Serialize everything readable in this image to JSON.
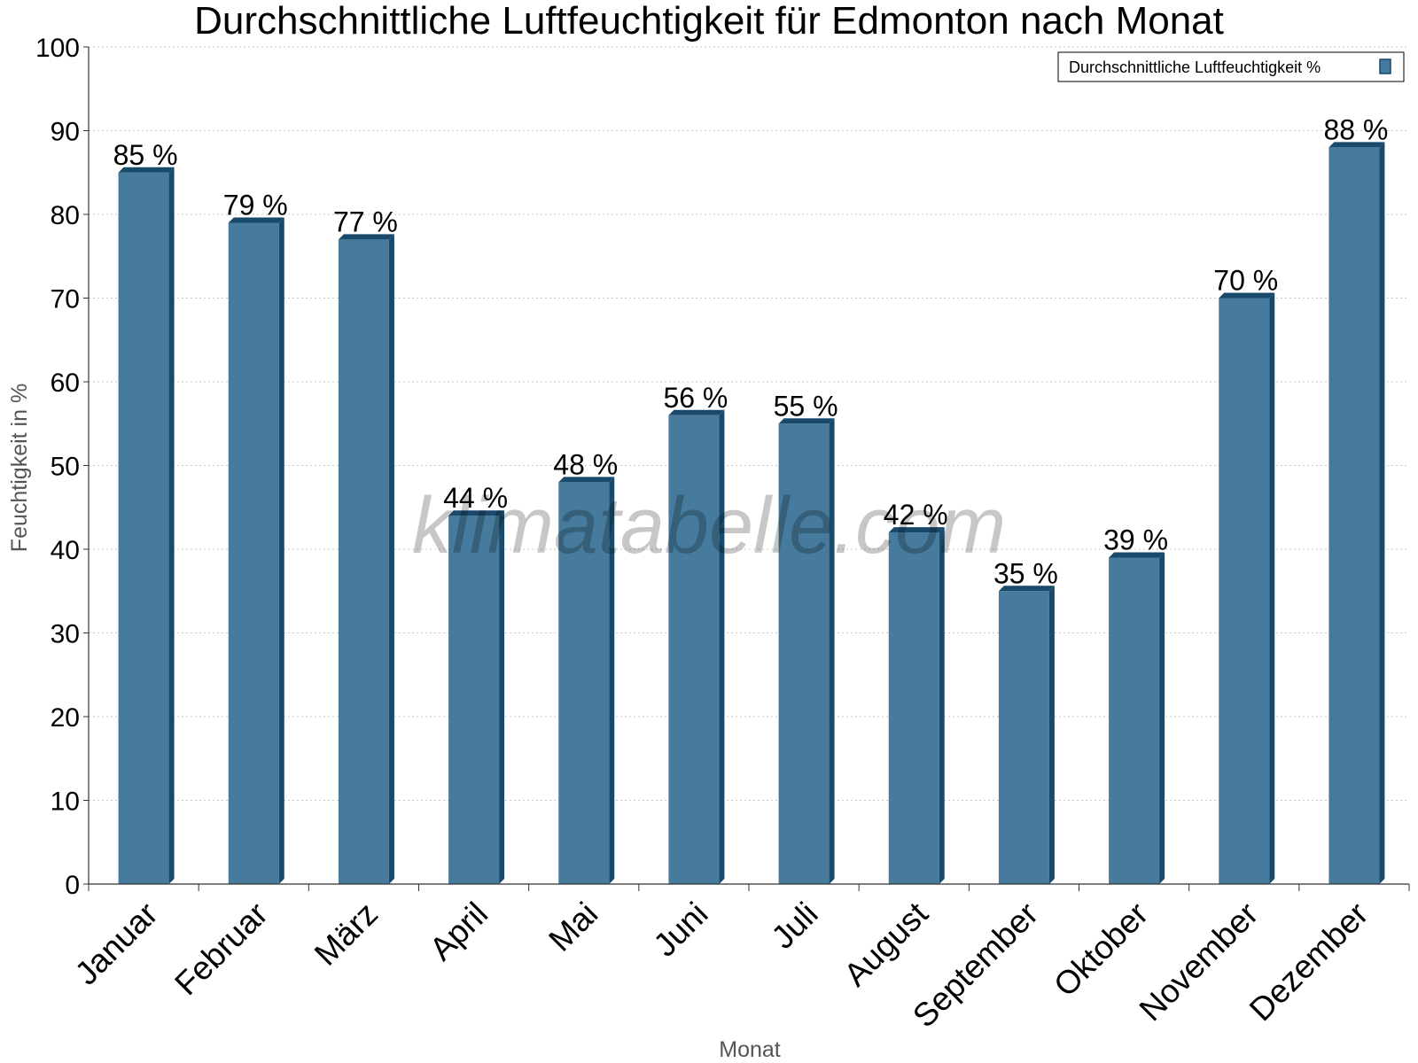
{
  "chart_data": {
    "type": "bar",
    "title": "Durchschnittliche Luftfeuchtigkeit für Edmonton nach Monat",
    "xlabel": "Monat",
    "ylabel": "Feuchtigkeit in %",
    "categories": [
      "Januar",
      "Februar",
      "März",
      "April",
      "Mai",
      "Juni",
      "Juli",
      "August",
      "September",
      "Oktober",
      "November",
      "Dezember"
    ],
    "series": [
      {
        "name": "Durchschnittliche Luftfeuchtigkeit %",
        "values": [
          85,
          79,
          77,
          44,
          48,
          56,
          55,
          42,
          35,
          39,
          70,
          88
        ],
        "data_labels": [
          "85 %",
          "79 %",
          "77 %",
          "44 %",
          "48 %",
          "56 %",
          "55 %",
          "42 %",
          "35 %",
          "39 %",
          "70 %",
          "88 %"
        ],
        "color": "#467b9d",
        "edge_color": "#1a4a6b"
      }
    ],
    "ylim": [
      0,
      100
    ],
    "yticks": [
      0,
      10,
      20,
      30,
      40,
      50,
      60,
      70,
      80,
      90,
      100
    ],
    "grid": true,
    "legend_position": "top-right"
  },
  "watermark": "klimatabelle.com"
}
